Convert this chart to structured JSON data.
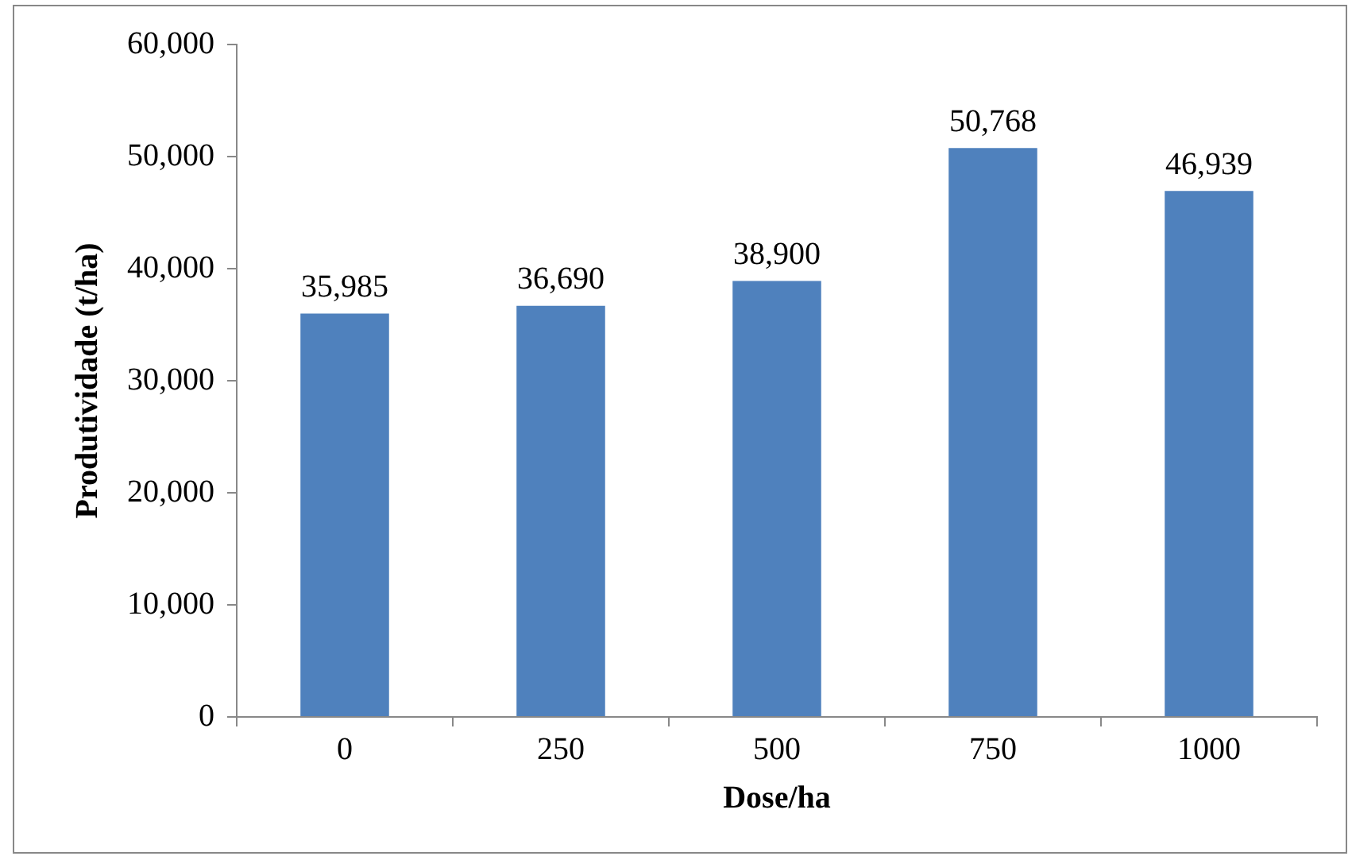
{
  "chart_data": {
    "type": "bar",
    "xlabel": "Dose/ha",
    "ylabel": "Produtividade (t/ha)",
    "categories": [
      "0",
      "250",
      "500",
      "750",
      "1000"
    ],
    "values": [
      35985,
      36690,
      38900,
      50768,
      46939
    ],
    "value_labels": [
      "35,985",
      "36,690",
      "38,900",
      "50,768",
      "46,939"
    ],
    "color": "#4f81bd",
    "ylim": [
      0,
      60000
    ],
    "yticks": [
      0,
      {
        "value": 10000,
        "label": "10,000"
      },
      {
        "value": 20000,
        "label": "20,000"
      },
      {
        "value": 30000,
        "label": "30,000"
      },
      {
        "value": 40000,
        "label": "40,000"
      },
      {
        "value": 50000,
        "label": "50,000"
      },
      {
        "value": 60000,
        "label": "60,000"
      }
    ]
  }
}
